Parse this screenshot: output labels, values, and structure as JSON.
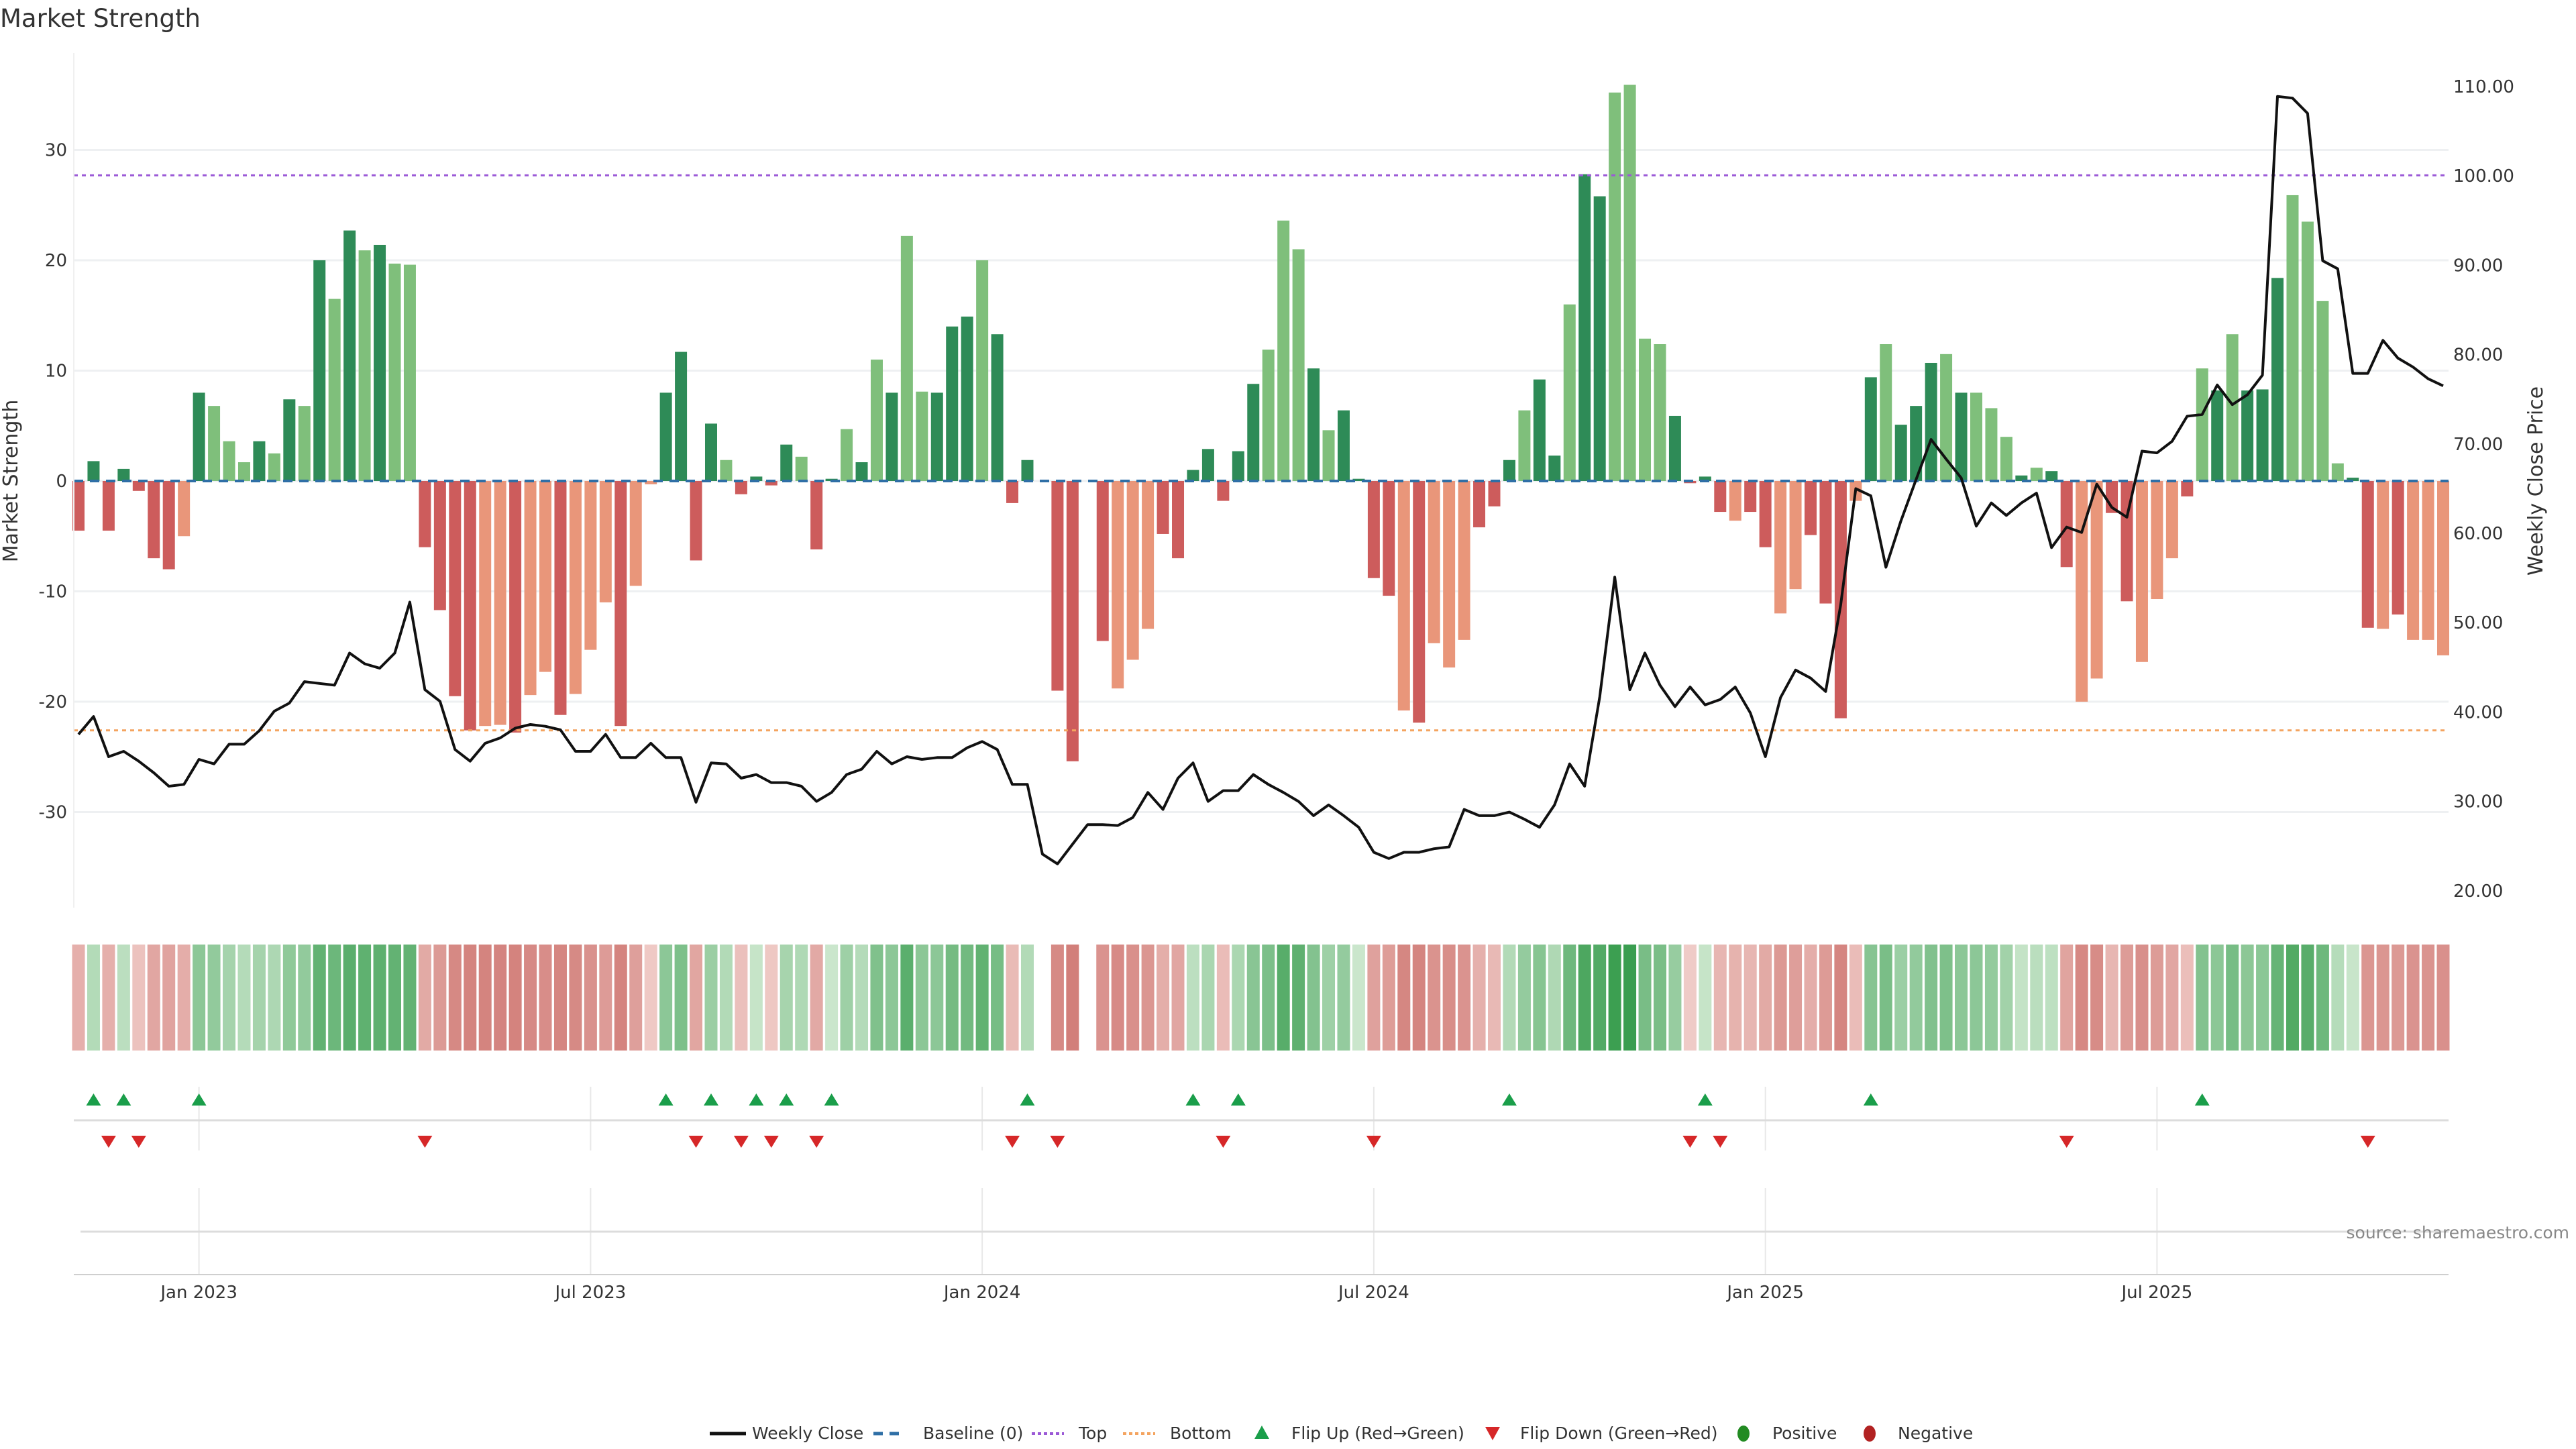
{
  "chart_data": {
    "type": "bar",
    "title": "Market Strength",
    "ylabel": "Market Strength",
    "y2label": "Weekly Close Price",
    "ylim": [
      -38.7,
      38.8
    ],
    "y2lim": [
      19,
      111
    ],
    "yticks": [
      "30",
      "20",
      "10",
      "0",
      "-10",
      "-20",
      "-30"
    ],
    "ytick_values": [
      30,
      20,
      10,
      0,
      -10,
      -20,
      -30
    ],
    "y2ticks": [
      "110.00",
      "100.00",
      "90.00",
      "80.00",
      "70.00",
      "60.00",
      "50.00",
      "40.00",
      "30.00",
      "20.00"
    ],
    "y2tick_values": [
      110,
      100,
      90,
      80,
      70,
      60,
      50,
      40,
      30,
      20
    ],
    "xticks": [
      "Jan 2023",
      "Jul 2023",
      "Jan 2024",
      "Jul 2024",
      "Jan 2025",
      "Jul 2025"
    ],
    "xtick_week_index": [
      9,
      35,
      61,
      87,
      113,
      139
    ],
    "top_level": 27.7,
    "bottom_level": -22.6,
    "grid": true,
    "legend_position": "bottom-center",
    "strength": [
      -4.5,
      1.8,
      -4.5,
      1.1,
      -0.9,
      -7,
      -8,
      -5,
      8,
      6.8,
      3.6,
      1.7,
      3.6,
      2.5,
      7.4,
      6.8,
      20,
      16.5,
      22.7,
      20.9,
      21.4,
      19.7,
      19.6,
      -6,
      -11.7,
      -19.5,
      -22.6,
      -22.2,
      -22.1,
      -22.8,
      -19.4,
      -17.3,
      -21.2,
      -19.3,
      -15.3,
      -11,
      -22.2,
      -9.5,
      -0.3,
      8,
      11.7,
      -7.2,
      5.2,
      1.9,
      -1.2,
      0.4,
      -0.4,
      3.3,
      2.2,
      -6.2,
      0.2,
      4.7,
      1.7,
      11,
      8,
      22.2,
      8.1,
      8,
      14,
      14.9,
      20,
      13.3,
      -2,
      1.9,
      0,
      -19,
      -25.4,
      0,
      -14.5,
      -18.8,
      -16.2,
      -13.4,
      -4.8,
      -7,
      1,
      2.9,
      -1.8,
      2.7,
      8.8,
      11.9,
      23.6,
      21,
      10.2,
      4.6,
      6.4,
      0.2,
      -8.8,
      -10.4,
      -20.8,
      -21.9,
      -14.7,
      -16.9,
      -14.4,
      -4.2,
      -2.3,
      1.9,
      6.4,
      9.2,
      2.3,
      16,
      27.8,
      25.8,
      35.2,
      35.9,
      12.9,
      12.4,
      5.9,
      -0.2,
      0.4,
      -2.8,
      -3.6,
      -2.8,
      -6,
      -12,
      -9.8,
      -4.9,
      -11.1,
      -21.5,
      -1.8,
      9.4,
      12.4,
      5.1,
      6.8,
      10.7,
      11.5,
      8,
      8,
      6.6,
      4,
      0.5,
      1.2,
      0.9,
      -7.8,
      -20,
      -17.9,
      -2.9,
      -10.9,
      -16.4,
      -10.7,
      -7,
      -1.4,
      10.2,
      8.2,
      13.3,
      8.2,
      8.3,
      18.4,
      25.9,
      23.5,
      16.3,
      1.6,
      0.3,
      -13.3,
      -13.4,
      -12.1,
      -14.4,
      -14.4,
      -15.8
    ],
    "shade": "DDDDDDDLDLLLDLDLDLDLDLLDDDDLLDLLDLLLDLLDDDDLDDDDLDDLDLDLLDDDLDDDDDDLDLLLDDDDDDDLLLDLDDDDLDLLLDDDLDDLDDLLLLDDDDLDDLLDDDLDLDDDLDLLLDLDDLLDDLLLDLDLDDDLLLLDDLDL",
    "weekly_close": [
      37.5,
      39.5,
      35,
      35.6,
      34.5,
      33.2,
      31.7,
      31.9,
      34.7,
      34.2,
      36.4,
      36.4,
      37.9,
      40.1,
      41,
      43.4,
      43.2,
      43,
      46.6,
      45.4,
      44.9,
      46.6,
      52.3,
      42.5,
      41.2,
      35.8,
      34.5,
      36.5,
      37.1,
      38.2,
      38.6,
      38.4,
      38,
      35.6,
      35.6,
      37.5,
      34.9,
      34.9,
      36.5,
      34.9,
      34.9,
      29.9,
      34.3,
      34.2,
      32.6,
      33,
      32.1,
      32.1,
      31.7,
      30,
      31,
      33,
      33.6,
      35.6,
      34.2,
      35,
      34.7,
      34.9,
      34.9,
      36,
      36.7,
      35.8,
      31.9,
      31.9,
      24.1,
      23,
      25.2,
      27.4,
      27.4,
      27.3,
      28.2,
      31,
      29.1,
      32.6,
      34.3,
      30,
      31.2,
      31.2,
      33,
      31.9,
      31,
      30,
      28.4,
      29.6,
      28.4,
      27.1,
      24.3,
      23.6,
      24.3,
      24.3,
      24.7,
      24.9,
      29.1,
      28.4,
      28.4,
      28.8,
      28,
      27.1,
      29.6,
      34.2,
      31.7,
      41.7,
      55.1,
      42.5,
      46.6,
      43,
      40.6,
      42.8,
      40.8,
      41.4,
      42.8,
      39.9,
      35,
      41.6,
      44.7,
      43.8,
      42.3,
      52,
      65,
      64.2,
      56.2,
      61.4,
      66,
      70.5,
      68.3,
      66.2,
      60.8,
      63.4,
      62,
      63.4,
      64.5,
      58.4,
      60.7,
      60.1,
      65.5,
      62.9,
      61.8,
      69.2,
      69,
      70.3,
      73.1,
      73.3,
      76.6,
      74.4,
      75.5,
      77.7,
      108.9,
      108.7,
      107,
      90.5,
      89.6,
      77.9,
      77.9,
      81.6,
      79.6,
      78.6,
      77.3,
      76.5
    ],
    "flip_up_week_index": [
      2,
      4,
      9,
      40,
      43,
      46,
      48,
      51,
      64,
      75,
      78,
      96,
      109,
      120,
      142
    ],
    "flip_down_week_index": [
      3,
      5,
      24,
      42,
      45,
      47,
      50,
      63,
      66,
      77,
      87,
      108,
      110,
      133,
      153
    ],
    "legend": [
      "Weekly Close",
      "Baseline (0)",
      "Top",
      "Bottom",
      "Flip Up (Red→Green)",
      "Flip Down (Green→Red)",
      "Positive",
      "Negative"
    ]
  },
  "colors": {
    "strong_positive": "#2e8b57",
    "weak_positive": "#7fbf7b",
    "strong_negative": "#cd5c5c",
    "weak_negative": "#e9967a",
    "baseline": "#2f6fa6",
    "top": "#9b59d6",
    "bottom": "#f4a460",
    "flip_up": "#1a9e4a",
    "flip_down": "#d62728",
    "positive": "#228b22",
    "negative": "#b22222",
    "line": "#111111"
  },
  "source": "source: sharemaestro.com"
}
